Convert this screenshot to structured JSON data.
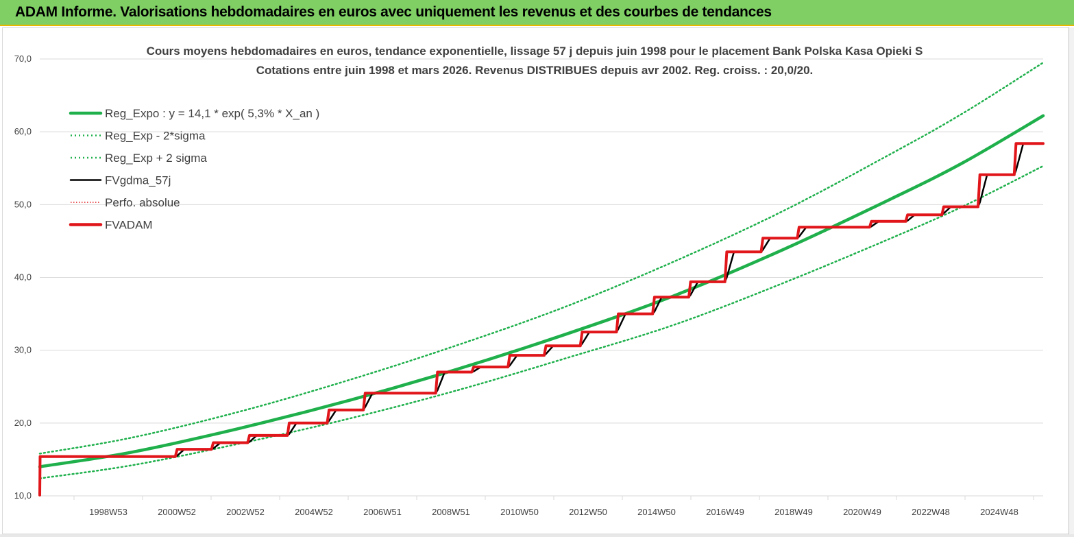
{
  "header": {
    "title": "ADAM Informe. Valorisations hebdomadaires en euros avec uniquement les revenus et des courbes de tendances"
  },
  "colors": {
    "header_bg": "#7fcf65",
    "header_border": "#e8b800",
    "reg_expo": "#1fb04c",
    "fv_gdma": "#000000",
    "fvadam": "#e0161b",
    "perfo": "#e0161b",
    "grid": "#d9d9d9"
  },
  "chart_data": {
    "type": "line",
    "title_line1": "Cours moyens hebdomadaires en euros, tendance exponentielle, lissage 57 j depuis juin 1998 pour le placement Bank Polska Kasa Opieki S",
    "title_line2": "Cotations entre juin 1998 et mars 2026. Revenus DISTRIBUES depuis avr 2002. Reg. croiss. : 20,0/20.",
    "x_range_years": [
      1998.45,
      2026.2
    ],
    "x_tick_labels": [
      "1998W53",
      "2000W52",
      "2002W52",
      "2004W52",
      "2006W51",
      "2008W51",
      "2010W50",
      "2012W50",
      "2014W50",
      "2016W49",
      "2018W49",
      "2020W49",
      "2022W48",
      "2024W48"
    ],
    "y_tick_labels": [
      "10,0",
      "20,0",
      "30,0",
      "40,0",
      "50,0",
      "60,0",
      "70,0"
    ],
    "ylim": [
      10,
      70
    ],
    "grid": true,
    "legend_position": "top-left",
    "legend": [
      {
        "key": "reg_expo",
        "label": "Reg_Expo : y = 14,1 * exp( 5,3% *  X_an )",
        "style": "solid-thick",
        "color": "#1fb04c"
      },
      {
        "key": "reg_minus",
        "label": "Reg_Exp - 2*sigma",
        "style": "dotted",
        "color": "#1fb04c"
      },
      {
        "key": "reg_plus",
        "label": "Reg_Exp + 2 sigma",
        "style": "dotted",
        "color": "#1fb04c"
      },
      {
        "key": "fv_gdma",
        "label": "FVgdma_57j",
        "style": "solid",
        "color": "#000000"
      },
      {
        "key": "perfo",
        "label": "Perfo. absolue",
        "style": "dotted-thin",
        "color": "#e0161b"
      },
      {
        "key": "fvadam",
        "label": "FVADAM",
        "style": "solid-thick",
        "color": "#e0161b"
      }
    ],
    "series": [
      {
        "name": "Reg_Expo : y = 14,1 * exp( 5,3% *  X_an )",
        "key": "reg_expo",
        "x": [
          1998.45,
          2001,
          2004,
          2007,
          2010,
          2013,
          2016,
          2019,
          2022,
          2024,
          2026.2
        ],
        "values": [
          14.0,
          16.0,
          19.3,
          23.1,
          27.4,
          32.2,
          37.5,
          43.8,
          50.8,
          55.8,
          62.2
        ]
      },
      {
        "name": "Reg_Exp + 2 sigma",
        "key": "reg_plus",
        "x": [
          1998.45,
          2001,
          2004,
          2007,
          2010,
          2013,
          2016,
          2019,
          2022,
          2024,
          2026.2
        ],
        "values": [
          15.8,
          18.0,
          21.6,
          25.9,
          30.7,
          36.0,
          42.2,
          49.1,
          57.0,
          62.6,
          69.5
        ]
      },
      {
        "name": "Reg_Exp - 2*sigma",
        "key": "reg_minus",
        "x": [
          1998.45,
          2001,
          2004,
          2007,
          2010,
          2013,
          2016,
          2019,
          2022,
          2024,
          2026.2
        ],
        "values": [
          12.4,
          14.2,
          17.2,
          20.6,
          24.5,
          28.9,
          33.5,
          39.2,
          45.4,
          49.8,
          55.3
        ]
      },
      {
        "name": "FVADAM",
        "key": "fvadam",
        "x": [
          1998.45,
          1998.46,
          2002.2,
          2002.25,
          2003.2,
          2003.25,
          2004.2,
          2004.25,
          2005.3,
          2005.35,
          2006.4,
          2006.45,
          2007.4,
          2007.45,
          2009.4,
          2009.45,
          2010.4,
          2010.45,
          2011.4,
          2011.45,
          2012.4,
          2012.45,
          2013.4,
          2013.45,
          2014.4,
          2014.45,
          2015.4,
          2015.45,
          2016.4,
          2016.45,
          2017.4,
          2017.45,
          2018.4,
          2018.45,
          2019.4,
          2019.45,
          2021.4,
          2021.45,
          2022.4,
          2022.45,
          2023.4,
          2023.45,
          2024.4,
          2024.45,
          2025.4,
          2025.45,
          2026.2
        ],
        "values": [
          10.1,
          15.4,
          15.4,
          16.4,
          16.4,
          17.3,
          17.3,
          18.3,
          18.3,
          20.0,
          20.0,
          21.8,
          21.8,
          24.1,
          24.1,
          27.0,
          27.0,
          27.7,
          27.7,
          29.3,
          29.3,
          30.6,
          30.6,
          32.5,
          32.5,
          35.0,
          35.0,
          37.3,
          37.3,
          39.4,
          39.4,
          43.5,
          43.5,
          45.4,
          45.4,
          46.9,
          46.9,
          47.7,
          47.7,
          48.6,
          48.6,
          49.7,
          49.7,
          54.1,
          54.1,
          58.4,
          58.4
        ]
      },
      {
        "name": "FVgdma_57j",
        "key": "fv_gdma",
        "x": [
          1998.45,
          1998.46,
          2002.2,
          2002.25,
          2002.45,
          2003.2,
          2003.25,
          2003.45,
          2004.2,
          2004.25,
          2004.45,
          2005.3,
          2005.35,
          2005.55,
          2006.4,
          2006.45,
          2006.65,
          2007.4,
          2007.45,
          2007.65,
          2009.4,
          2009.45,
          2009.65,
          2010.4,
          2010.45,
          2010.65,
          2011.4,
          2011.45,
          2011.65,
          2012.4,
          2012.45,
          2012.65,
          2013.4,
          2013.45,
          2013.65,
          2014.4,
          2014.45,
          2014.65,
          2015.4,
          2015.45,
          2015.65,
          2016.4,
          2016.45,
          2016.65,
          2017.4,
          2017.45,
          2017.65,
          2018.4,
          2018.45,
          2018.65,
          2019.4,
          2019.45,
          2019.65,
          2021.4,
          2021.45,
          2021.65,
          2022.4,
          2022.45,
          2022.65,
          2023.4,
          2023.45,
          2023.65,
          2024.4,
          2024.45,
          2024.65,
          2025.4,
          2025.45,
          2025.65,
          2026.2
        ],
        "values": [
          10.1,
          15.4,
          15.4,
          15.5,
          16.4,
          16.4,
          16.5,
          17.3,
          17.3,
          17.4,
          18.3,
          18.3,
          18.5,
          20.0,
          20.0,
          20.3,
          21.8,
          21.8,
          22.2,
          24.1,
          24.1,
          24.5,
          27.0,
          27.0,
          27.1,
          27.7,
          27.7,
          27.9,
          29.3,
          29.3,
          29.5,
          30.6,
          30.6,
          30.9,
          32.5,
          32.5,
          32.9,
          35.0,
          35.0,
          35.3,
          37.3,
          37.3,
          37.6,
          39.4,
          39.4,
          40.0,
          43.5,
          43.5,
          43.8,
          45.4,
          45.4,
          45.6,
          46.9,
          46.9,
          47.0,
          47.7,
          47.7,
          47.8,
          48.6,
          48.6,
          48.8,
          49.7,
          49.7,
          50.3,
          54.1,
          54.1,
          54.7,
          58.4,
          58.4
        ]
      }
    ]
  }
}
